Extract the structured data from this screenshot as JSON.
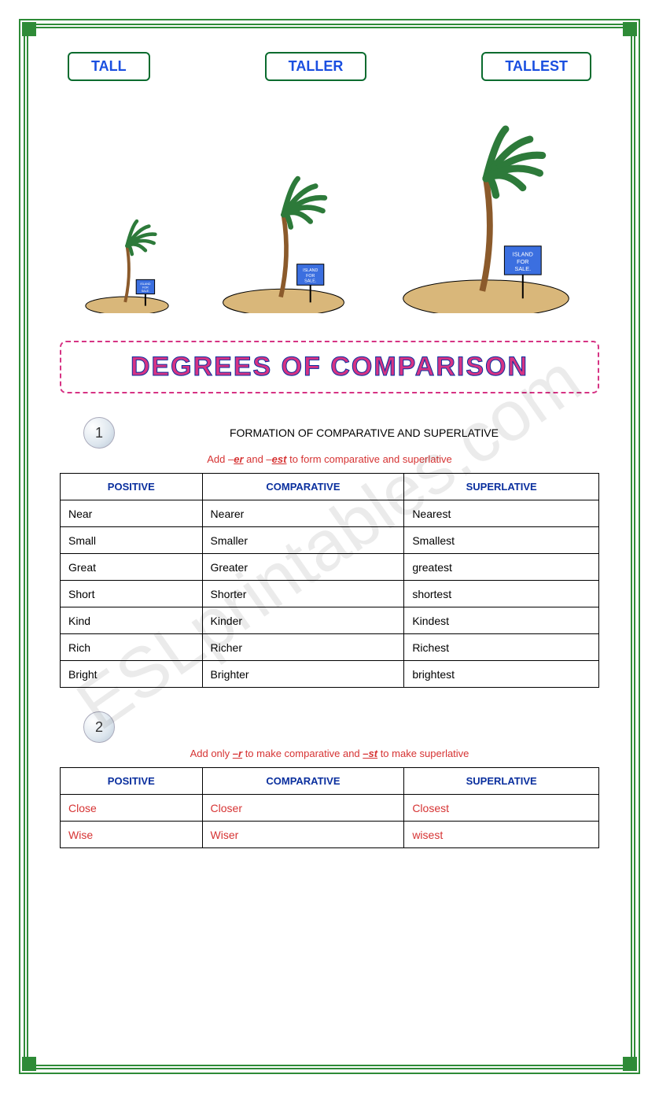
{
  "labels": {
    "positive": "TALL",
    "comparative": "TALLER",
    "superlative": "TALLEST"
  },
  "palm_sign": "ISLAND FOR SALE.",
  "main_title": "DEGREES OF COMPARISON",
  "watermark": "ESLprintables.com",
  "section1": {
    "num": "1",
    "subtitle": "FORMATION OF COMPARATIVE AND SUPERLATIVE",
    "rule_pre": "Add –",
    "rule_u1": "er",
    "rule_mid": " and –",
    "rule_u2": "est",
    "rule_post": " to form comparative and superlative",
    "headers": {
      "col1": "POSITIVE",
      "col2": "COMPARATIVE",
      "col3": "SUPERLATIVE"
    },
    "rows": [
      {
        "c1": "Near",
        "c2": "Nearer",
        "c3": "Nearest"
      },
      {
        "c1": "Small",
        "c2": "Smaller",
        "c3": "Smallest"
      },
      {
        "c1": "Great",
        "c2": "Greater",
        "c3": "greatest"
      },
      {
        "c1": "Short",
        "c2": "Shorter",
        "c3": "shortest"
      },
      {
        "c1": "Kind",
        "c2": "Kinder",
        "c3": "Kindest"
      },
      {
        "c1": "Rich",
        "c2": "Richer",
        "c3": "Richest"
      },
      {
        "c1": "Bright",
        "c2": "Brighter",
        "c3": "brightest"
      }
    ]
  },
  "section2": {
    "num": "2",
    "rule_pre": "Add only ",
    "rule_u1": "–r",
    "rule_mid1": " to make comparative and ",
    "rule_u2": "–st",
    "rule_post": " to make superlative",
    "headers": {
      "col1": "POSITIVE",
      "col2": "COMPARATIVE",
      "col3": "SUPERLATIVE"
    },
    "rows": [
      {
        "c1": "Close",
        "c2": "Closer",
        "c3": "Closest"
      },
      {
        "c1": "Wise",
        "c2": "Wiser",
        "c3": "wisest"
      }
    ]
  },
  "colors": {
    "border": "#2e8b37",
    "label_border": "#0a6b2e",
    "label_text": "#1a4fe0",
    "title_fill": "#d63384",
    "title_outline": "#0a2f9e",
    "rule_text": "#d63333",
    "th_text": "#0a2f9e",
    "leaf": "#2d7a3a",
    "trunk": "#8b5a2b",
    "sand": "#d9b77a",
    "sign_bg": "#3b6fe0"
  },
  "fonts": {
    "label_pt": 18,
    "title_pt": 34,
    "body_pt": 14,
    "rule_pt": 13
  },
  "palm_heights": {
    "small": 130,
    "medium": 190,
    "large": 260
  }
}
